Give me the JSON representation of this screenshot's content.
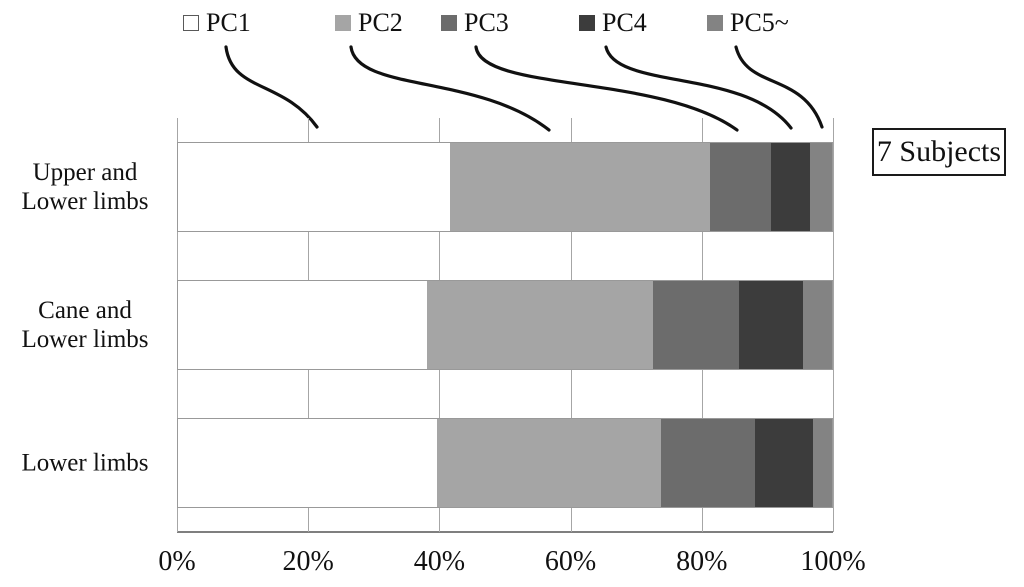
{
  "chart_data": {
    "type": "bar",
    "orientation": "horizontal",
    "stacked": true,
    "unit": "percent",
    "title": "",
    "categories": [
      "Upper and Lower limbs",
      "Cane and Lower limbs",
      "Lower limbs"
    ],
    "category_lines": [
      [
        "Upper and",
        "Lower limbs"
      ],
      [
        "Cane and",
        "Lower limbs"
      ],
      [
        "Lower limbs"
      ]
    ],
    "series": [
      {
        "name": "PC1",
        "color": "#ffffff",
        "values": [
          41.6,
          38.0,
          39.6
        ]
      },
      {
        "name": "PC2",
        "color": "#a5a5a5",
        "values": [
          39.8,
          34.6,
          34.2
        ]
      },
      {
        "name": "PC3",
        "color": "#6c6c6c",
        "values": [
          9.3,
          13.2,
          14.5
        ]
      },
      {
        "name": "PC4",
        "color": "#3c3c3c",
        "values": [
          5.9,
          9.8,
          8.8
        ]
      },
      {
        "name": "PC5~",
        "color": "#838383",
        "values": [
          3.4,
          4.4,
          2.9
        ]
      }
    ],
    "x_ticks": [
      "0%",
      "20%",
      "40%",
      "60%",
      "80%",
      "100%"
    ],
    "xlim": [
      0,
      100
    ],
    "grid": "vertical",
    "legend_position": "top",
    "annotation": "7 Subjects",
    "colors": {
      "gridline": "#a6a6a6",
      "axis_line": "#7f7f7f",
      "bar_outline": "#999999",
      "leader_line": "#111111",
      "text": "#111111"
    }
  }
}
